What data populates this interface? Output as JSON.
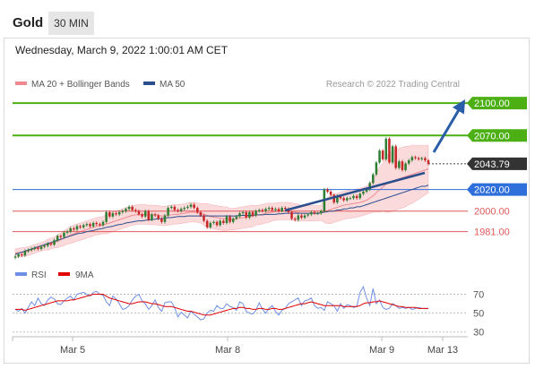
{
  "header": {
    "title": "Gold",
    "timeframe": "30 MIN"
  },
  "timestamp": "Wednesday, March 9, 2022 1:00:01 AM CET",
  "attribution": "Research © 2022 Trading Central",
  "colors": {
    "price_up": "#2e7d32",
    "price_down": "#c62828",
    "bollinger": "#f4a3a8",
    "ma50": "#2b4f8c",
    "resistance": "#4caf14",
    "support": "#e05a5a",
    "pivot": "#2f6fdb",
    "current": "#333333",
    "rsi": "#6d8fe6",
    "rsi_ma": "#e00000",
    "arrow": "#2b5ea8"
  },
  "chart_data": [
    {
      "type": "candlestick",
      "title": "Gold",
      "timeframe": "30 MIN",
      "x_ticks": [
        "Mar 5",
        "Mar 8",
        "Mar 9",
        "Mar 13"
      ],
      "ylim": [
        1955,
        2110
      ],
      "legend": [
        {
          "name": "MA 20 + Bollinger Bands",
          "color": "#f08a90"
        },
        {
          "name": "MA 50",
          "color": "#2b4f8c"
        }
      ],
      "legend_position": "top-left",
      "levels": [
        {
          "label": "2100.00",
          "value": 2100,
          "kind": "resistance"
        },
        {
          "label": "2070.00",
          "value": 2070,
          "kind": "resistance"
        },
        {
          "label": "2043.79",
          "value": 2043.79,
          "kind": "current"
        },
        {
          "label": "2020.00",
          "value": 2020,
          "kind": "pivot"
        },
        {
          "label": "2000.00",
          "value": 2000,
          "kind": "support"
        },
        {
          "label": "1981.00",
          "value": 1981,
          "kind": "support"
        }
      ],
      "close": [
        1958,
        1960,
        1959,
        1963,
        1964,
        1965,
        1966,
        1965,
        1967,
        1968,
        1970,
        1969,
        1973,
        1977,
        1976,
        1980,
        1981,
        1984,
        1983,
        1986,
        1985,
        1987,
        1988,
        1986,
        1989,
        1988,
        1987,
        1990,
        1999,
        1995,
        1998,
        1997,
        1999,
        2000,
        2002,
        2004,
        2001,
        2000,
        1997,
        1995,
        2000,
        1992,
        1997,
        1996,
        1993,
        1990,
        1996,
        2003,
        2004,
        2001,
        2000,
        2002,
        2003,
        2004,
        2006,
        2003,
        1999,
        1996,
        1991,
        1985,
        1989,
        1990,
        1987,
        1991,
        1989,
        1995,
        1990,
        1993,
        1995,
        1998,
        1999,
        1994,
        1999,
        1996,
        2000,
        2001,
        2000,
        2002,
        2003,
        2001,
        2002,
        2000,
        2003,
        2002,
        1999,
        1993,
        1992,
        1996,
        1994,
        1996,
        1997,
        1999,
        1998,
        1998,
        2000,
        2020,
        2018,
        2015,
        2008,
        2014,
        2012,
        2010,
        2012,
        2012,
        2014,
        2012,
        2016,
        2018,
        2020,
        2026,
        2034,
        2045,
        2056,
        2048,
        2067,
        2045,
        2060,
        2040,
        2046,
        2038,
        2044,
        2047,
        2050,
        2049,
        2048,
        2049,
        2047,
        2043.79
      ],
      "ma50": [
        1960,
        1961,
        1962,
        1963,
        1964,
        1965,
        1966,
        1967,
        1968,
        1969,
        1970,
        1971,
        1972,
        1973,
        1974,
        1975,
        1976,
        1977,
        1978,
        1979,
        1979.5,
        1980,
        1981,
        1981.5,
        1982,
        1983,
        1983.5,
        1984,
        1985,
        1985.5,
        1986,
        1987,
        1987.5,
        1988,
        1989,
        1989.5,
        1990,
        1990.5,
        1991,
        1991,
        1991.5,
        1992,
        1992,
        1992.5,
        1993,
        1993,
        1993.5,
        1994,
        1994,
        1994.5,
        1995,
        1995,
        1995,
        1995.5,
        1995.5,
        1995.5,
        1995.5,
        1995.5,
        1995.5,
        1995.5,
        1995.5,
        1995.5,
        1995.5,
        1995.5,
        1995.5,
        1995.5,
        1995.5,
        1995.5,
        1995.5,
        1996,
        1996,
        1996,
        1996,
        1996,
        1996.5,
        1996.5,
        1996.5,
        1997,
        1997,
        1997,
        1997,
        1997.5,
        1997.5,
        1998,
        1998,
        1998,
        1998,
        1998,
        1998,
        1998,
        1998,
        1998,
        1998,
        1998,
        1998.5,
        1999,
        1999.5,
        2000,
        2000,
        2001,
        2001,
        2002,
        2002,
        2003,
        2003,
        2004,
        2004,
        2005,
        2006,
        2007,
        2008,
        2009,
        2010,
        2011,
        2012,
        2013,
        2014,
        2015,
        2016,
        2017,
        2018,
        2019,
        2020,
        2021,
        2022,
        2023,
        2023,
        2024
      ],
      "boll_mid": [
        1961,
        1961.5,
        1962,
        1962.5,
        1963,
        1964,
        1965,
        1966,
        1967,
        1968,
        1969,
        1970,
        1971,
        1972,
        1973.5,
        1975,
        1976.5,
        1978,
        1979,
        1980,
        1981,
        1982,
        1983,
        1984,
        1985,
        1986,
        1986.5,
        1987,
        1988,
        1989,
        1990,
        1991,
        1992,
        1993,
        1994,
        1995,
        1996,
        1996.5,
        1997,
        1997,
        1997,
        1996.5,
        1996.5,
        1996.5,
        1996,
        1995.5,
        1995.5,
        1996,
        1996.5,
        1997,
        1997,
        1997.5,
        1998,
        1998.5,
        1999,
        1999,
        1998.5,
        1998,
        1997,
        1996,
        1995,
        1994.5,
        1994,
        1993.5,
        1993,
        1993,
        1992.5,
        1992.5,
        1993,
        1993.5,
        1994,
        1994.5,
        1995,
        1995.5,
        1996,
        1996.5,
        1997,
        1998,
        1998.5,
        1999,
        1999.5,
        2000,
        2000,
        2000,
        2000,
        1999.5,
        1999,
        1998.5,
        1998,
        1998,
        1998,
        1998,
        1998,
        1998,
        1998.5,
        1999.5,
        2000.5,
        2001.5,
        2002.5,
        2003.5,
        2004.5,
        2005.5,
        2006,
        2006.5,
        2007,
        2007.5,
        2008,
        2009,
        2010,
        2012,
        2014,
        2017,
        2020,
        2022,
        2025,
        2026,
        2028,
        2029,
        2030,
        2031,
        2032,
        2033,
        2034,
        2035,
        2036,
        2037,
        2038,
        2039
      ],
      "boll_width": [
        4,
        4,
        4,
        4,
        4,
        4,
        4,
        4,
        4,
        4,
        5,
        5,
        5,
        6,
        6,
        7,
        7,
        8,
        8,
        8,
        8,
        8,
        8,
        8,
        8,
        8,
        8,
        8,
        9,
        9,
        9,
        9,
        9,
        9,
        9,
        9,
        9,
        9,
        9,
        9,
        9,
        9,
        9,
        9,
        9,
        9,
        9,
        9,
        9,
        9,
        9,
        9,
        9,
        9,
        9,
        9,
        9,
        9,
        10,
        11,
        11,
        11,
        11,
        11,
        11,
        11,
        10,
        10,
        10,
        10,
        10,
        10,
        10,
        10,
        9,
        9,
        9,
        9,
        9,
        8,
        8,
        8,
        8,
        8,
        8,
        8,
        8,
        8,
        7,
        7,
        7,
        7,
        7,
        7,
        7,
        10,
        12,
        13,
        13,
        13,
        13,
        13,
        13,
        13,
        13,
        13,
        13,
        13,
        13,
        14,
        15,
        18,
        21,
        22,
        26,
        27,
        28,
        28,
        28,
        28,
        28,
        27,
        27,
        26,
        25,
        24,
        23,
        22
      ]
    },
    {
      "type": "line",
      "title": "RSI",
      "legend": [
        {
          "name": "RSI",
          "color": "#6d8fe6"
        },
        {
          "name": "9MA",
          "color": "#e00000"
        }
      ],
      "legend_position": "top-left",
      "ylim": [
        25,
        80
      ],
      "y_ticks": [
        "70",
        "50",
        "30"
      ],
      "reference_lines": [
        70,
        50,
        30
      ],
      "rsi": [
        54,
        52,
        55,
        50,
        56,
        62,
        58,
        66,
        60,
        58,
        64,
        67,
        65,
        60,
        59,
        63,
        66,
        68,
        64,
        70,
        71,
        72,
        70,
        68,
        72,
        73,
        70,
        69,
        62,
        58,
        68,
        65,
        60,
        54,
        55,
        58,
        64,
        68,
        70,
        63,
        60,
        54,
        58,
        64,
        56,
        52,
        61,
        62,
        62,
        56,
        46,
        51,
        48,
        45,
        52,
        49,
        46,
        43,
        44,
        50,
        53,
        52,
        58,
        55,
        55,
        60,
        57,
        56,
        53,
        62,
        60,
        52,
        50,
        49,
        53,
        61,
        54,
        50,
        55,
        58,
        52,
        48,
        53,
        55,
        60,
        62,
        64,
        66,
        58,
        63,
        64,
        66,
        58,
        55,
        56,
        53,
        62,
        60,
        58,
        52,
        60,
        55,
        59,
        58,
        56,
        57,
        72,
        78,
        66,
        58,
        76,
        60,
        64,
        56,
        54,
        55,
        60,
        58,
        55,
        56,
        55,
        56,
        54,
        55,
        56,
        55,
        55,
        55
      ],
      "ma9": [
        54,
        54,
        54,
        53,
        54,
        55,
        56,
        57,
        58,
        59,
        60,
        61,
        62,
        63,
        63,
        63,
        63,
        64,
        64,
        65,
        66,
        67,
        68,
        69,
        70,
        70,
        70,
        70,
        68,
        66,
        65,
        64,
        63,
        62,
        61,
        60,
        60,
        61,
        62,
        62,
        62,
        61,
        60,
        60,
        59,
        58,
        57,
        57,
        57,
        56,
        55,
        54,
        53,
        52,
        52,
        51,
        50,
        49,
        48,
        48,
        48,
        49,
        50,
        51,
        52,
        53,
        54,
        55,
        55,
        56,
        56,
        55,
        55,
        54,
        54,
        55,
        55,
        54,
        54,
        55,
        55,
        54,
        54,
        55,
        56,
        57,
        58,
        59,
        60,
        60,
        61,
        62,
        61,
        60,
        59,
        58,
        58,
        58,
        58,
        58,
        58,
        57,
        57,
        57,
        57,
        57,
        58,
        60,
        61,
        61,
        62,
        62,
        63,
        62,
        61,
        60,
        59,
        58,
        57,
        57,
        56,
        56,
        56,
        56,
        55,
        55,
        55,
        55
      ]
    }
  ]
}
